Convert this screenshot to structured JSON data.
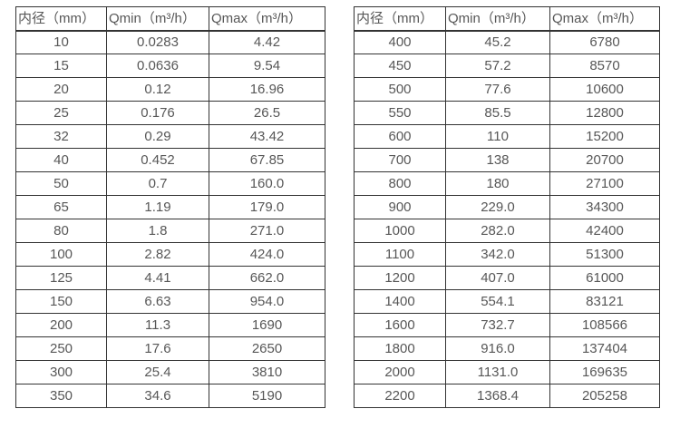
{
  "page": {
    "background": "#ffffff",
    "table_border_color": "#333333",
    "text_color": "#575757"
  },
  "chart_data": [
    {
      "type": "table",
      "columns": [
        "内径（mm）",
        "Qmin（m³/h）",
        "Qmax（m³/h）"
      ],
      "rows": [
        [
          "10",
          "0.0283",
          "4.42"
        ],
        [
          "15",
          "0.0636",
          "9.54"
        ],
        [
          "20",
          "0.12",
          "16.96"
        ],
        [
          "25",
          "0.176",
          "26.5"
        ],
        [
          "32",
          "0.29",
          "43.42"
        ],
        [
          "40",
          "0.452",
          "67.85"
        ],
        [
          "50",
          "0.7",
          "160.0"
        ],
        [
          "65",
          "1.19",
          "179.0"
        ],
        [
          "80",
          "1.8",
          "271.0"
        ],
        [
          "100",
          "2.82",
          "424.0"
        ],
        [
          "125",
          "4.41",
          "662.0"
        ],
        [
          "150",
          "6.63",
          "954.0"
        ],
        [
          "200",
          "11.3",
          "1690"
        ],
        [
          "250",
          "17.6",
          "2650"
        ],
        [
          "300",
          "25.4",
          "3810"
        ],
        [
          "350",
          "34.6",
          "5190"
        ]
      ]
    },
    {
      "type": "table",
      "columns": [
        "内径（mm）",
        "Qmin（m³/h）",
        "Qmax（m³/h）"
      ],
      "rows": [
        [
          "400",
          "45.2",
          "6780"
        ],
        [
          "450",
          "57.2",
          "8570"
        ],
        [
          "500",
          "77.6",
          "10600"
        ],
        [
          "550",
          "85.5",
          "12800"
        ],
        [
          "600",
          "110",
          "15200"
        ],
        [
          "700",
          "138",
          "20700"
        ],
        [
          "800",
          "180",
          "27100"
        ],
        [
          "900",
          "229.0",
          "34300"
        ],
        [
          "1000",
          "282.0",
          "42400"
        ],
        [
          "1100",
          "342.0",
          "51300"
        ],
        [
          "1200",
          "407.0",
          "61000"
        ],
        [
          "1400",
          "554.1",
          "83121"
        ],
        [
          "1600",
          "732.7",
          "108566"
        ],
        [
          "1800",
          "916.0",
          "137404"
        ],
        [
          "2000",
          "1131.0",
          "169635"
        ],
        [
          "2200",
          "1368.4",
          "205258"
        ]
      ]
    }
  ]
}
